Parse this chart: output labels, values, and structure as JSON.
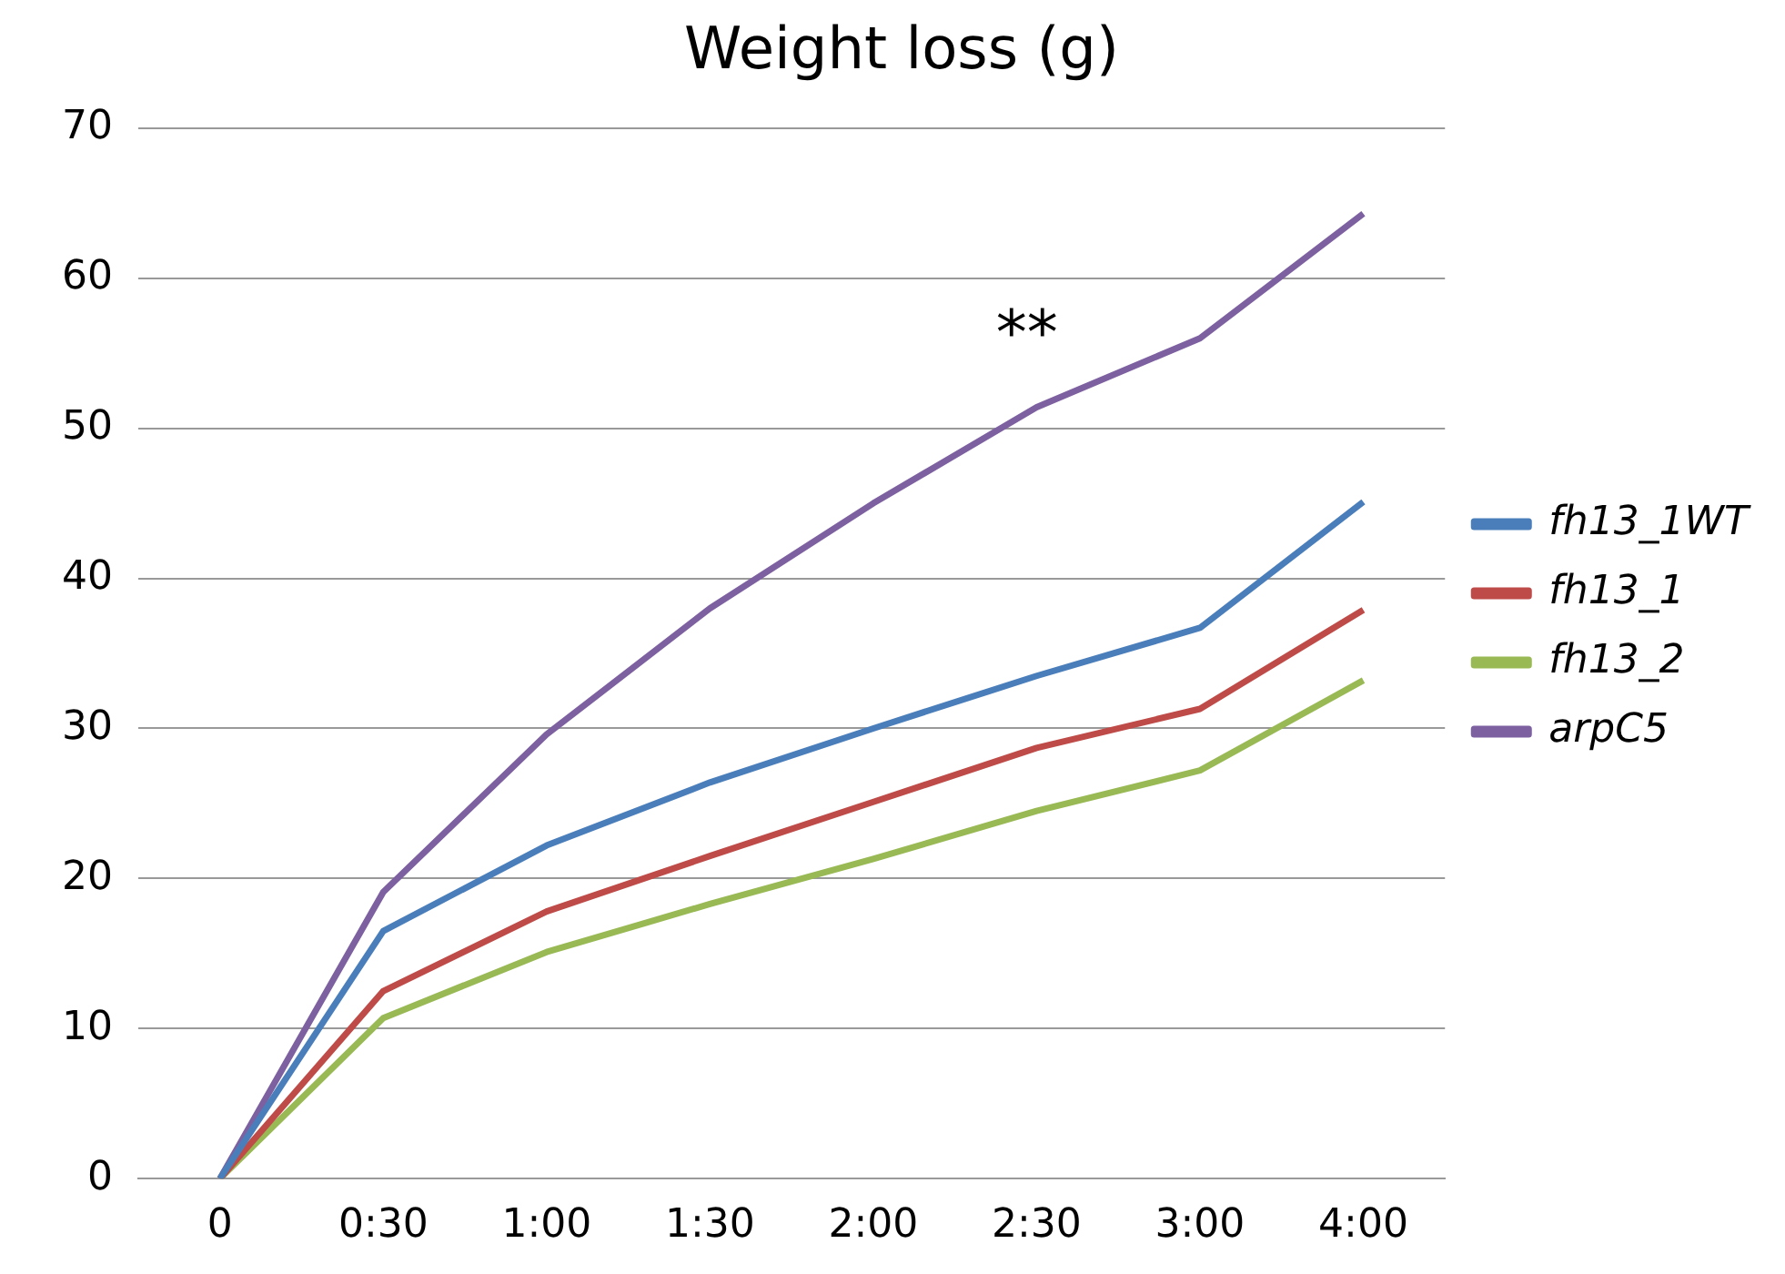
{
  "chart_data": {
    "type": "line",
    "title": "Weight loss (g)",
    "categories": [
      "0",
      "0:30",
      "1:00",
      "1:30",
      "2:00",
      "2:30",
      "3:00",
      "4:00"
    ],
    "series": [
      {
        "name": "fh13_1WT",
        "color": "#4a7ebb",
        "values": [
          0,
          16.5,
          22.2,
          26.4,
          30,
          33.5,
          36.7,
          45.1
        ]
      },
      {
        "name": "fh13_1",
        "color": "#be4b48",
        "values": [
          0,
          12.5,
          17.8,
          21.5,
          25.1,
          28.7,
          31.3,
          37.9
        ]
      },
      {
        "name": "fh13_2",
        "color": "#98b954",
        "values": [
          0,
          10.7,
          15.1,
          18.3,
          21.3,
          24.5,
          27.2,
          33.2
        ]
      },
      {
        "name": "arpC5",
        "color": "#7d60a0",
        "values": [
          0,
          19.1,
          29.6,
          38,
          45,
          51.4,
          56,
          64.3
        ]
      }
    ],
    "ylim": [
      0,
      70
    ],
    "yticks": [
      0,
      10,
      20,
      30,
      40,
      50,
      60,
      70
    ],
    "grid": "y",
    "legend": "right",
    "marker": "none",
    "line_style": "solid",
    "annotations": [
      "**"
    ]
  }
}
